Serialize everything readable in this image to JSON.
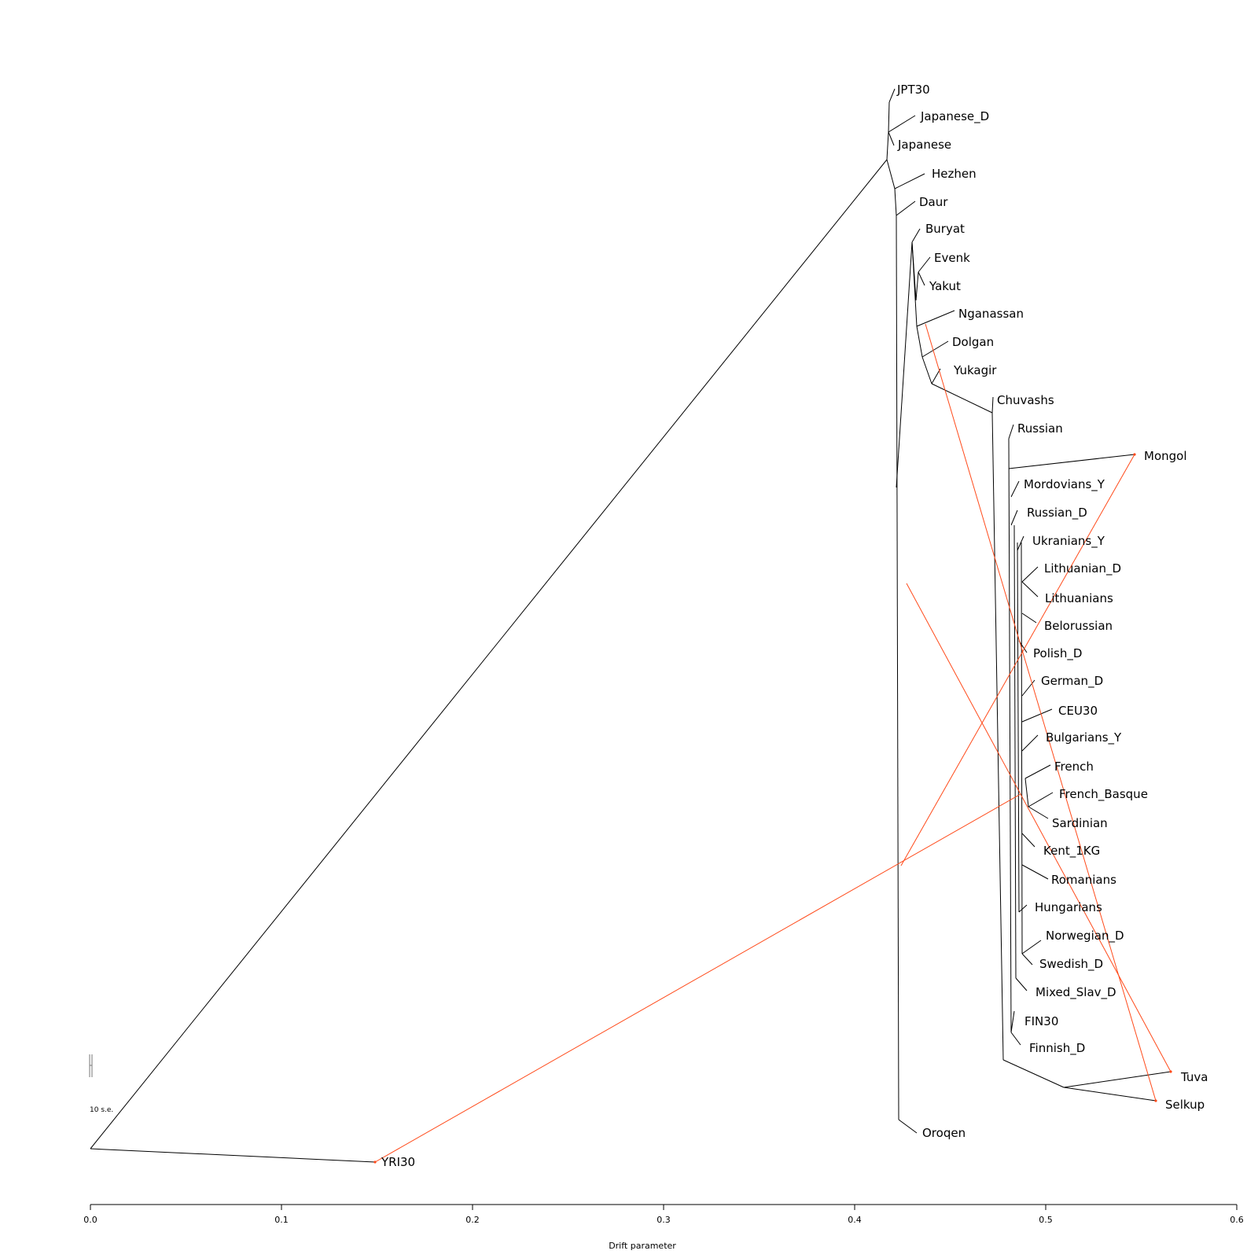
{
  "chart_data": {
    "type": "tree",
    "xlabel": "Drift parameter",
    "xlim": [
      0.0,
      0.6
    ],
    "x_ticks": [
      "0.0",
      "0.1",
      "0.2",
      "0.3",
      "0.4",
      "0.5",
      "0.6"
    ],
    "scale_bar_label": "10 s.e.",
    "colors": {
      "tree_edge": "#000000",
      "migration_edge": "#ff4a1a"
    },
    "leaves": [
      {
        "name": "JPT30",
        "drift": 0.42
      },
      {
        "name": "Japanese_D",
        "drift": 0.431
      },
      {
        "name": "Japanese",
        "drift": 0.419
      },
      {
        "name": "Hezhen",
        "drift": 0.434
      },
      {
        "name": "Daur",
        "drift": 0.428
      },
      {
        "name": "Buryat",
        "drift": 0.431
      },
      {
        "name": "Evenk",
        "drift": 0.435
      },
      {
        "name": "Yakut",
        "drift": 0.434
      },
      {
        "name": "Nganassan",
        "drift": 0.448
      },
      {
        "name": "Dolgan",
        "drift": 0.445
      },
      {
        "name": "Yukagir",
        "drift": 0.445
      },
      {
        "name": "Chuvashs",
        "drift": 0.472
      },
      {
        "name": "Russian",
        "drift": 0.482
      },
      {
        "name": "Mongol",
        "drift": 0.547
      },
      {
        "name": "Mordovians_Y",
        "drift": 0.484
      },
      {
        "name": "Russian_D",
        "drift": 0.486
      },
      {
        "name": "Ukranians_Y",
        "drift": 0.488
      },
      {
        "name": "Lithuanian_D",
        "drift": 0.494
      },
      {
        "name": "Lithuanians",
        "drift": 0.493
      },
      {
        "name": "Belorussian",
        "drift": 0.492
      },
      {
        "name": "Polish_D",
        "drift": 0.487
      },
      {
        "name": "German_D",
        "drift": 0.491
      },
      {
        "name": "CEU30",
        "drift": 0.5
      },
      {
        "name": "Bulgarians_Y",
        "drift": 0.492
      },
      {
        "name": "French",
        "drift": 0.498
      },
      {
        "name": "French_Basque",
        "drift": 0.5
      },
      {
        "name": "Sardinian",
        "drift": 0.497
      },
      {
        "name": "Kent_1KG",
        "drift": 0.489
      },
      {
        "name": "Romanians",
        "drift": 0.497
      },
      {
        "name": "Hungarians",
        "drift": 0.488
      },
      {
        "name": "Norwegian_D",
        "drift": 0.494
      },
      {
        "name": "Swedish_D",
        "drift": 0.491
      },
      {
        "name": "Mixed_Slav_D",
        "drift": 0.49
      },
      {
        "name": "FIN30",
        "drift": 0.485
      },
      {
        "name": "Finnish_D",
        "drift": 0.487
      },
      {
        "name": "Tuva",
        "drift": 0.567
      },
      {
        "name": "Selkup",
        "drift": 0.559
      },
      {
        "name": "Oroqen",
        "drift": 0.43
      },
      {
        "name": "YRI30",
        "drift": 0.149
      }
    ]
  }
}
